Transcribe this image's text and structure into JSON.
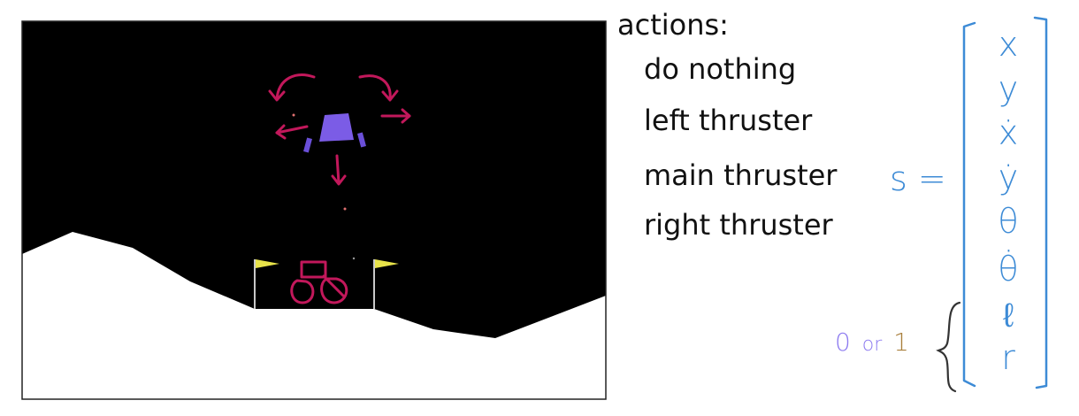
{
  "colors": {
    "game_background": "#000000",
    "terrain": "#ffffff",
    "lander": "#7b5ce6",
    "legs": "#6a4fd8",
    "flags": "#e8e34a",
    "annotation_arrows": "#c2185b",
    "state_vector_ink": "#3d8bd6",
    "zero_ink": "#8e7cf0",
    "one_ink": "#a97f3c",
    "brace_ink": "#333333"
  },
  "icons": {
    "lander": "lunar-lander-shape",
    "flag": "landing-pad-flag",
    "rotation": "curved-arrow",
    "thrust": "straight-arrow"
  },
  "actions": {
    "title": "actions:",
    "items": [
      "do nothing",
      "left thruster",
      "main thruster",
      "right thruster"
    ]
  },
  "state": {
    "label": "s =",
    "components": [
      "x",
      "y",
      "ẋ",
      "ẏ",
      "θ",
      "θ̇",
      "ℓ",
      "r"
    ],
    "binary_note": {
      "zero": "0",
      "or": "or",
      "one": "1"
    }
  }
}
